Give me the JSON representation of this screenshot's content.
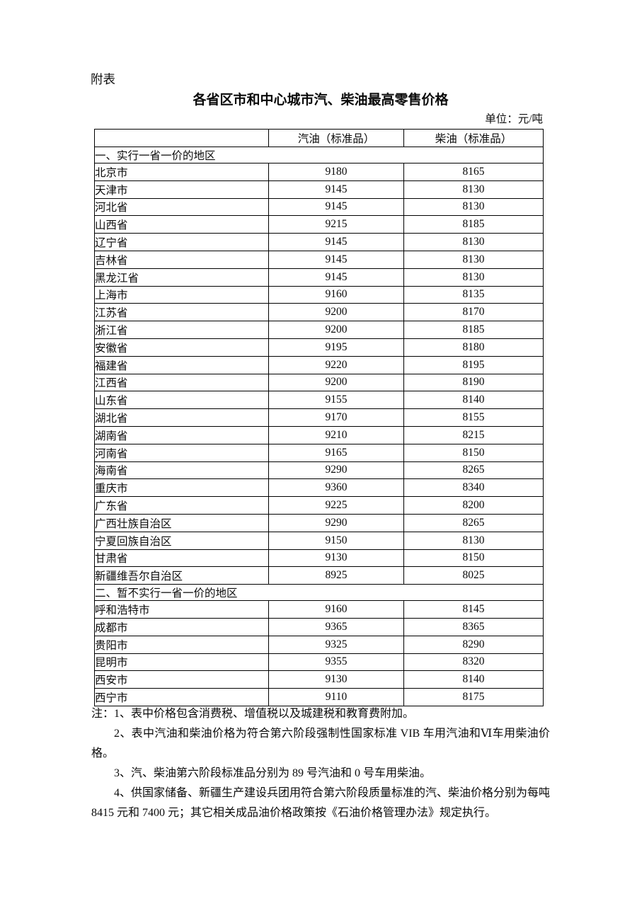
{
  "page": {
    "tag": "附表",
    "title": "各省区市和中心城市汽、柴油最高零售价格",
    "unit": "单位：元/吨"
  },
  "table": {
    "columns": [
      "",
      "汽油（标准品）",
      "柴油（标准品）"
    ],
    "sections": [
      {
        "header": "一、实行一省一价的地区",
        "rows": [
          [
            "北京市",
            "9180",
            "8165"
          ],
          [
            "天津市",
            "9145",
            "8130"
          ],
          [
            "河北省",
            "9145",
            "8130"
          ],
          [
            "山西省",
            "9215",
            "8185"
          ],
          [
            "辽宁省",
            "9145",
            "8130"
          ],
          [
            "吉林省",
            "9145",
            "8130"
          ],
          [
            "黑龙江省",
            "9145",
            "8130"
          ],
          [
            "上海市",
            "9160",
            "8135"
          ],
          [
            "江苏省",
            "9200",
            "8170"
          ],
          [
            "浙江省",
            "9200",
            "8185"
          ],
          [
            "安徽省",
            "9195",
            "8180"
          ],
          [
            "福建省",
            "9220",
            "8195"
          ],
          [
            "江西省",
            "9200",
            "8190"
          ],
          [
            "山东省",
            "9155",
            "8140"
          ],
          [
            "湖北省",
            "9170",
            "8155"
          ],
          [
            "湖南省",
            "9210",
            "8215"
          ],
          [
            "河南省",
            "9165",
            "8150"
          ],
          [
            "海南省",
            "9290",
            "8265"
          ],
          [
            "重庆市",
            "9360",
            "8340"
          ],
          [
            "广东省",
            "9225",
            "8200"
          ],
          [
            "广西壮族自治区",
            "9290",
            "8265"
          ],
          [
            "宁夏回族自治区",
            "9150",
            "8130"
          ],
          [
            "甘肃省",
            "9130",
            "8150"
          ],
          [
            "新疆维吾尔自治区",
            "8925",
            "8025"
          ]
        ]
      },
      {
        "header": "二、暂不实行一省一价的地区",
        "rows": [
          [
            "呼和浩特市",
            "9160",
            "8145"
          ],
          [
            "成都市",
            "9365",
            "8365"
          ],
          [
            "贵阳市",
            "9325",
            "8290"
          ],
          [
            "昆明市",
            "9355",
            "8320"
          ],
          [
            "西安市",
            "9130",
            "8140"
          ],
          [
            "西宁市",
            "9110",
            "8175"
          ]
        ]
      }
    ]
  },
  "notes": {
    "label": "注：",
    "items": [
      "1、表中价格包含消费税、增值税以及城建税和教育费附加。",
      "2、表中汽油和柴油价格为符合第六阶段强制性国家标准 VIB 车用汽油和Ⅵ车用柴油价格。",
      "3、汽、柴油第六阶段标准品分别为 89 号汽油和 0 号车用柴油。",
      "4、供国家储备、新疆生产建设兵团用符合第六阶段质量标准的汽、柴油价格分别为每吨 8415 元和 7400 元；其它相关成品油价格政策按《石油价格管理办法》规定执行。"
    ]
  }
}
